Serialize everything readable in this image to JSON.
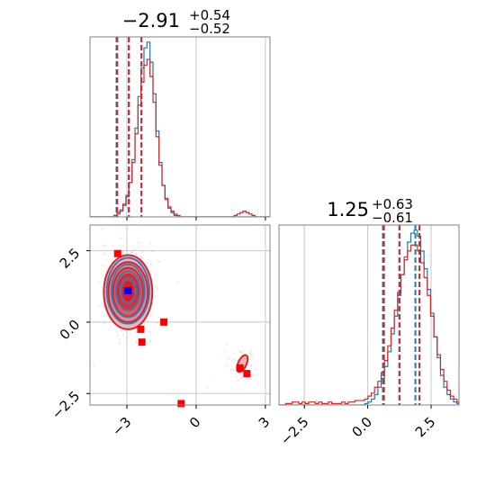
{
  "chart_data": [
    {
      "type": "histogram",
      "panel": "top-left marginal",
      "title": {
        "value": "−2.91",
        "plus": "+0.54",
        "minus": "−0.52"
      },
      "xlim": [
        -4.6,
        3.2
      ],
      "xticks": [
        "−3",
        "0",
        "3"
      ],
      "xtick_values": [
        -3,
        0,
        3
      ],
      "grid": true,
      "series": [
        {
          "color": "#1f77b4",
          "bin_start": -4.6,
          "bin_width": 0.13,
          "counts": [
            0,
            0,
            0,
            0,
            0,
            0,
            0,
            0,
            1,
            2,
            4,
            8,
            14,
            24,
            40,
            62,
            84,
            104,
            118,
            122,
            108,
            86,
            60,
            38,
            22,
            12,
            6,
            3,
            1,
            0,
            0,
            0,
            0,
            0,
            0,
            0,
            0,
            0,
            0,
            0,
            0,
            0,
            0,
            0,
            0,
            0,
            0,
            0,
            0,
            0,
            0,
            0,
            0,
            0,
            0,
            0,
            0,
            0,
            0,
            0
          ]
        },
        {
          "color": "#d62728",
          "bin_start": -4.6,
          "bin_width": 0.13,
          "counts": [
            0,
            0,
            0,
            0,
            0,
            0,
            0,
            0,
            1,
            3,
            5,
            9,
            15,
            24,
            38,
            58,
            78,
            94,
            106,
            110,
            98,
            80,
            56,
            36,
            22,
            13,
            7,
            4,
            2,
            1,
            0,
            0,
            0,
            0,
            0,
            0,
            0,
            0,
            0,
            0,
            0,
            0,
            0,
            0,
            0,
            0,
            0,
            0,
            1,
            2,
            3,
            4,
            3,
            2,
            1,
            0,
            0,
            0,
            0,
            0
          ]
        }
      ],
      "quantile_lines": [
        {
          "color": "#1f77b4",
          "values": [
            -3.45,
            -2.92,
            -2.37
          ]
        },
        {
          "color": "#d62728",
          "values": [
            -3.42,
            -2.91,
            -2.37
          ]
        }
      ]
    },
    {
      "type": "scatter",
      "panel": "bottom-left 2D",
      "xlim": [
        -4.6,
        3.2
      ],
      "ylim": [
        -2.9,
        3.4
      ],
      "xticks": [
        "−3",
        "0",
        "3"
      ],
      "xtick_values": [
        -3,
        0,
        3
      ],
      "yticks": [
        "2.5",
        "0.0",
        "−2.5"
      ],
      "ytick_values": [
        2.5,
        0.0,
        -2.5
      ],
      "grid": true,
      "red_square_markers": [
        [
          -3.4,
          2.4
        ],
        [
          -1.4,
          0.0
        ],
        [
          -2.4,
          -0.25
        ],
        [
          -2.35,
          -0.7
        ],
        [
          1.9,
          -1.6
        ],
        [
          2.2,
          -1.8
        ],
        [
          -0.65,
          -2.85
        ]
      ],
      "blue_square_markers": [
        [
          -2.95,
          1.1
        ]
      ],
      "blue_contour_center": [
        -2.95,
        1.1
      ],
      "red_contour_center": [
        -2.95,
        1.05
      ],
      "red_secondary_blob_center": [
        2.0,
        -1.45
      ]
    },
    {
      "type": "histogram",
      "panel": "bottom-right marginal",
      "title": {
        "value": "1.25",
        "plus": "+0.63",
        "minus": "−0.61"
      },
      "xlim": [
        -3.5,
        3.6
      ],
      "xticks": [
        "−2.5",
        "0.0",
        "2.5"
      ],
      "xtick_values": [
        -2.5,
        0.0,
        2.5
      ],
      "grid": true,
      "series": [
        {
          "color": "#1f77b4",
          "bin_start": -3.5,
          "bin_width": 0.13,
          "counts": [
            0,
            0,
            0,
            0,
            0,
            0,
            0,
            0,
            0,
            0,
            0,
            0,
            0,
            0,
            0,
            0,
            0,
            0,
            0,
            0,
            0,
            0,
            0,
            0,
            0,
            0,
            1,
            2,
            4,
            7,
            12,
            18,
            26,
            36,
            48,
            60,
            74,
            88,
            100,
            110,
            116,
            118,
            114,
            104,
            92,
            78,
            62,
            46,
            32,
            20,
            12,
            7,
            4,
            2,
            1,
            0,
            0
          ]
        },
        {
          "color": "#d62728",
          "bin_start": -3.5,
          "bin_width": 0.13,
          "counts": [
            0,
            0,
            1,
            1,
            2,
            2,
            1,
            2,
            1,
            2,
            2,
            1,
            2,
            1,
            1,
            2,
            1,
            1,
            1,
            2,
            1,
            2,
            2,
            3,
            3,
            3,
            4,
            6,
            8,
            12,
            16,
            22,
            30,
            40,
            52,
            64,
            76,
            88,
            98,
            104,
            108,
            108,
            104,
            96,
            86,
            74,
            60,
            46,
            34,
            24,
            16,
            10,
            6,
            4,
            2,
            1,
            1
          ]
        }
      ],
      "quantile_lines": [
        {
          "color": "#1f77b4",
          "values": [
            0.6,
            1.25,
            1.88
          ]
        },
        {
          "color": "#d62728",
          "values": [
            0.64,
            1.25,
            2.04
          ]
        }
      ]
    }
  ]
}
